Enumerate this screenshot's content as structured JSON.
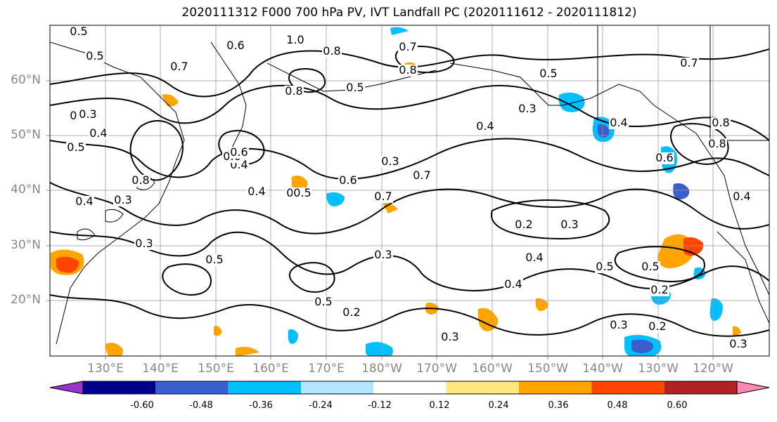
{
  "title": "2020111312 F000 700 hPa PV, IVT Landfall PC (2020111612 - 2020111812)",
  "lat_labels": [
    "60°N",
    "50°N",
    "40°N",
    "30°N",
    "20°N"
  ],
  "lon_labels": [
    "130°E",
    "140°E",
    "150°E",
    "160°E",
    "170°E",
    "180°W",
    "170°W",
    "160°W",
    "150°W",
    "140°W",
    "130°W",
    "120°W"
  ],
  "colorbar": {
    "colors": [
      "#9932cc",
      "#00008b",
      "#3a5fcd",
      "#00bfff",
      "#b2e5ff",
      "#ffffff",
      "#ffe680",
      "#ffa500",
      "#ff4500",
      "#b22222",
      "#ff88b0"
    ],
    "ticks": [
      "-0.60",
      "-0.48",
      "-0.36",
      "-0.24",
      "-0.12",
      "0.12",
      "0.24",
      "0.36",
      "0.48",
      "0.60"
    ]
  },
  "contour_labels": [
    "0.5",
    "0.5",
    "0.7",
    "0.3",
    "0.4",
    "0.5",
    "0.6",
    "0.8",
    "1.0",
    "0.8",
    "0.7",
    "0.8",
    "0.5",
    "0.8",
    "0.3",
    "0.4",
    "0.6",
    "0.4",
    "0.3",
    "0.6",
    "0.5",
    "0.4",
    "0.7",
    "0.7",
    "0.6",
    "0.8",
    "0.7",
    "0.5",
    "0.4",
    "0.3",
    "0.3",
    "0.5",
    "0.3",
    "0.5",
    "0.2",
    "0.3",
    "0.2",
    "0.3",
    "0.4",
    "0.4",
    "0.2",
    "0.3",
    "0.5",
    "0.5",
    "0.3",
    "0.2",
    "0.4",
    "0.3",
    "0.5",
    "0.6",
    "0.8",
    "0.4"
  ],
  "features": {
    "pv_contours": "black",
    "coastlines": "black",
    "gridlines": "gray",
    "shading": "IVT landfall PC"
  }
}
